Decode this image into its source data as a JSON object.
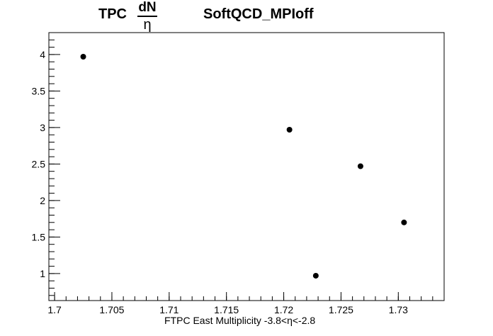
{
  "title": {
    "left": "TPC",
    "frac_num": "dN",
    "frac_den": "η",
    "right": "SoftQCD_MPIoff"
  },
  "chart_data": {
    "type": "scatter",
    "title": "TPC dN/η SoftQCD_MPIoff",
    "xlabel": "FTPC East Multiplicity -3.8<η<-2.8",
    "ylabel": "",
    "xlim": [
      1.6995,
      1.734
    ],
    "ylim": [
      0.63,
      4.3
    ],
    "x_ticks": [
      1.7,
      1.705,
      1.71,
      1.715,
      1.72,
      1.725,
      1.73
    ],
    "x_tick_labels": [
      "1.7",
      "1.705",
      "1.71",
      "1.715",
      "1.72",
      "1.725",
      "1.73"
    ],
    "y_ticks": [
      1,
      1.5,
      2,
      2.5,
      3,
      3.5,
      4
    ],
    "y_tick_labels": [
      "1",
      "1.5",
      "2",
      "2.5",
      "3",
      "3.5",
      "4"
    ],
    "grid": false,
    "marker_color": "#000000",
    "series": [
      {
        "points": [
          {
            "x": 1.7025,
            "y": 3.97
          },
          {
            "x": 1.7205,
            "y": 2.97
          },
          {
            "x": 1.7228,
            "y": 0.97
          },
          {
            "x": 1.7267,
            "y": 2.47
          },
          {
            "x": 1.7305,
            "y": 1.7
          }
        ]
      }
    ]
  }
}
